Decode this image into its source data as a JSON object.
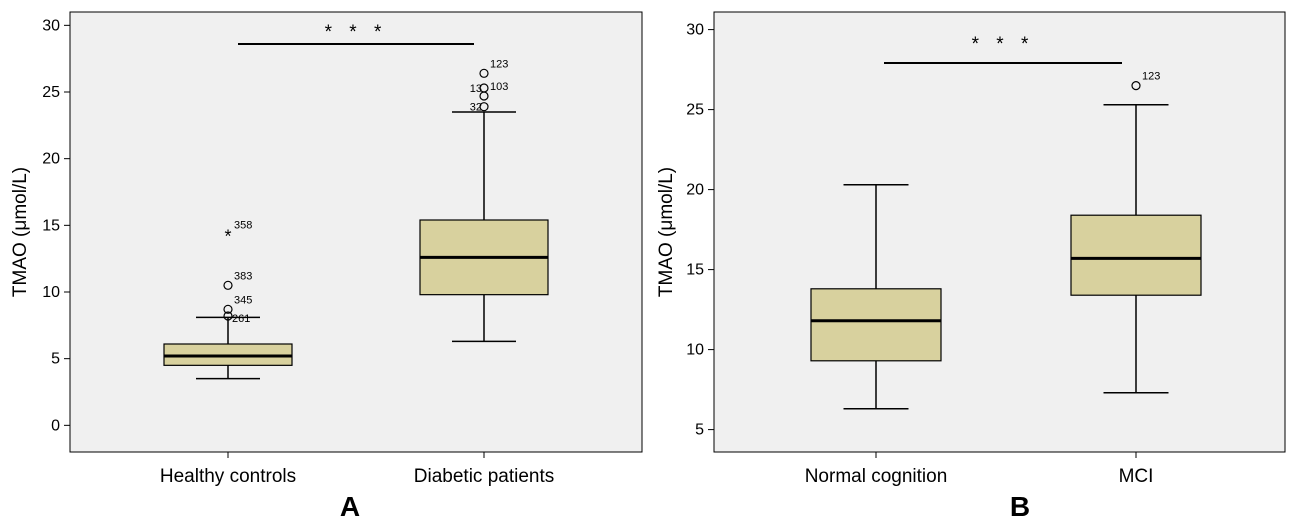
{
  "colors": {
    "box_fill": "#d8d19e",
    "plot_bg": "#f0f0f0",
    "stroke": "#000000"
  },
  "chart_data": [
    {
      "type": "box",
      "panel_label": "A",
      "ylabel": "TMAO (μmol/L)",
      "ylim": [
        -2,
        31
      ],
      "yticks": [
        0,
        5,
        10,
        15,
        20,
        25,
        30
      ],
      "grid": false,
      "significance": "* * *",
      "categories": [
        "Healthy controls",
        "Diabetic patients"
      ],
      "boxes": [
        {
          "category": "Healthy controls",
          "whisker_low": 3.5,
          "q1": 4.5,
          "median": 5.2,
          "q3": 6.1,
          "whisker_high": 8.1,
          "outliers": [
            {
              "value": 14.3,
              "marker": "star",
              "label": "358"
            },
            {
              "value": 10.5,
              "marker": "circle",
              "label": "383"
            },
            {
              "value": 8.7,
              "marker": "circle",
              "label": "345"
            },
            {
              "value": 8.2,
              "marker": "circle",
              "label": "261"
            }
          ]
        },
        {
          "category": "Diabetic patients",
          "whisker_low": 6.3,
          "q1": 9.8,
          "median": 12.6,
          "q3": 15.4,
          "whisker_high": 23.5,
          "outliers": [
            {
              "value": 26.4,
              "marker": "circle",
              "label": "123"
            },
            {
              "value": 25.3,
              "marker": "circle",
              "label": "13"
            },
            {
              "value": 24.7,
              "marker": "circle",
              "label": "103"
            },
            {
              "value": 23.9,
              "marker": "circle",
              "label": "32"
            }
          ]
        }
      ]
    },
    {
      "type": "box",
      "panel_label": "B",
      "ylabel": "TMAO (μmol/L)",
      "ylim": [
        3.6,
        31.1
      ],
      "yticks": [
        5,
        10,
        15,
        20,
        25,
        30
      ],
      "grid": false,
      "significance": "* * *",
      "categories": [
        "Normal cognition",
        "MCI"
      ],
      "boxes": [
        {
          "category": "Normal cognition",
          "whisker_low": 6.3,
          "q1": 9.3,
          "median": 11.8,
          "q3": 13.8,
          "whisker_high": 20.3,
          "outliers": []
        },
        {
          "category": "MCI",
          "whisker_low": 7.3,
          "q1": 13.4,
          "median": 15.7,
          "q3": 18.4,
          "whisker_high": 25.3,
          "outliers": [
            {
              "value": 26.5,
              "marker": "circle",
              "label": "123"
            }
          ]
        }
      ]
    }
  ]
}
